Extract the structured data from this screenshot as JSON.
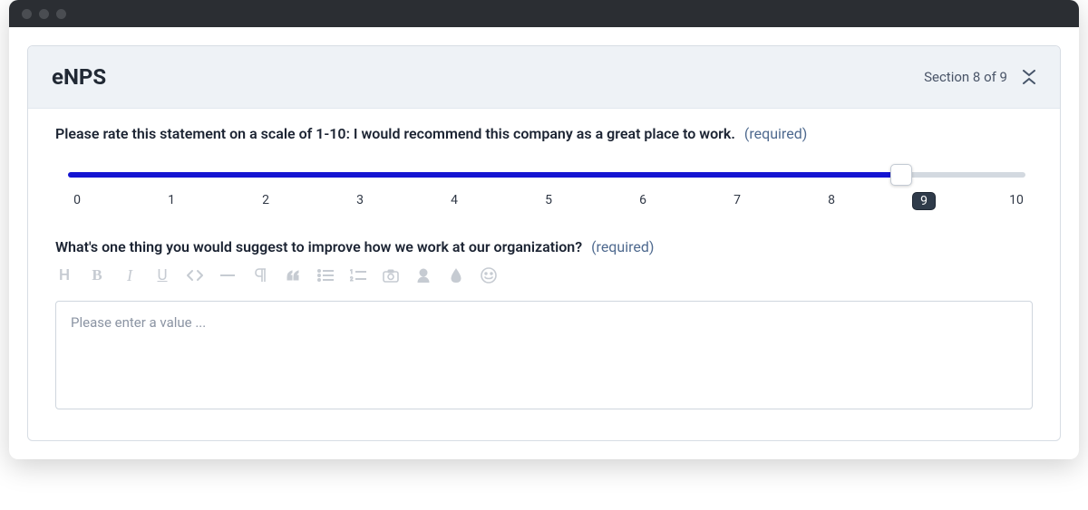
{
  "header": {
    "title": "eNPS",
    "section_text": "Section 8 of 9"
  },
  "question1": {
    "label": "Please rate this statement on a scale of 1-10: I would recommend this company as a great place to work.",
    "required_text": "(required)",
    "slider": {
      "min": 0,
      "max": 10,
      "value": 9,
      "tick_labels": [
        "0",
        "1",
        "2",
        "3",
        "4",
        "5",
        "6",
        "7",
        "8",
        "9",
        "10"
      ],
      "fill_percent": 87,
      "thumb_percent": 87,
      "selected_index": 9,
      "track_color": "#d3d9e0",
      "fill_color": "#1414d2",
      "thumb_bg": "#ffffff",
      "tick_sel_bg": "#2f3b4a"
    }
  },
  "question2": {
    "label": "What's one thing you would suggest to improve how we work at our organization?",
    "required_text": "(required)",
    "placeholder": "Please enter a value ...",
    "value": ""
  },
  "toolbar": {
    "heading_label": "H",
    "bold_label": "B",
    "italic_label": "I",
    "underline_label": "U"
  },
  "colors": {
    "panel_header_bg": "#eef2f6",
    "border": "#d7dde4",
    "text": "#1c2433",
    "required": "#4f6a8f",
    "toolbar_icon": "#c6cbd2"
  }
}
